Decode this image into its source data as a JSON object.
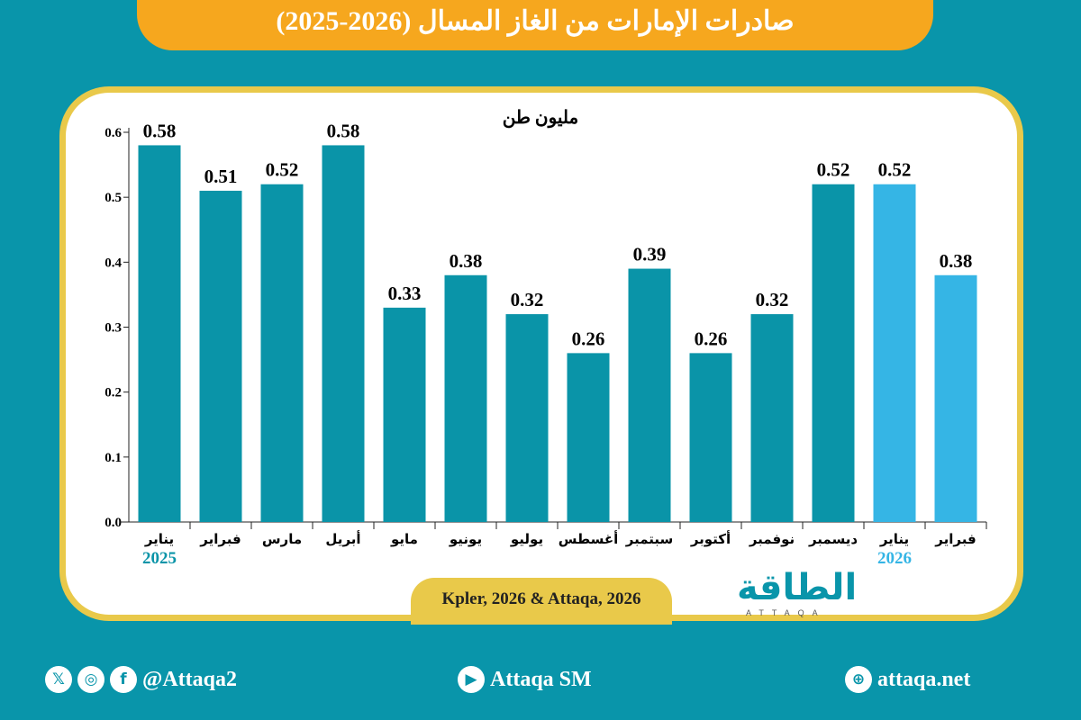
{
  "title": "صادرات الإمارات من الغاز المسال (2026-2025)",
  "chart_data": {
    "type": "bar",
    "title": "صادرات الإمارات من الغاز المسال (2026-2025)",
    "ylabel": "مليون طن",
    "ylim": [
      0,
      0.6
    ],
    "yticks": [
      "0.0",
      "0.1",
      "0.2",
      "0.3",
      "0.4",
      "0.5",
      "0.6"
    ],
    "categories": [
      "يناير",
      "فبراير",
      "مارس",
      "أبريل",
      "مايو",
      "يونيو",
      "يوليو",
      "أغسطس",
      "سبتمبر",
      "أكتوبر",
      "نوفمبر",
      "ديسمبر",
      "يناير",
      "فبراير"
    ],
    "values": [
      0.58,
      0.51,
      0.52,
      0.58,
      0.33,
      0.38,
      0.32,
      0.26,
      0.39,
      0.26,
      0.32,
      0.52,
      0.52,
      0.38
    ],
    "labels": [
      "0.58",
      "0.51",
      "0.52",
      "0.58",
      "0.33",
      "0.38",
      "0.32",
      "0.26",
      "0.39",
      "0.26",
      "0.32",
      "0.52",
      "0.52",
      "0.38"
    ],
    "years": [
      {
        "label": "2025",
        "index": 0,
        "color": "#0a94a8"
      },
      {
        "label": "2026",
        "index": 12,
        "color": "#35b5e5"
      }
    ]
  },
  "source": "Kpler, 2026 & Attaqa, 2026",
  "logo": {
    "ar": "الطاقة",
    "en": "ATTAQA"
  },
  "footer": {
    "social": "@Attaqa2",
    "youtube": "Attaqa SM",
    "website": "attaqa.net"
  }
}
